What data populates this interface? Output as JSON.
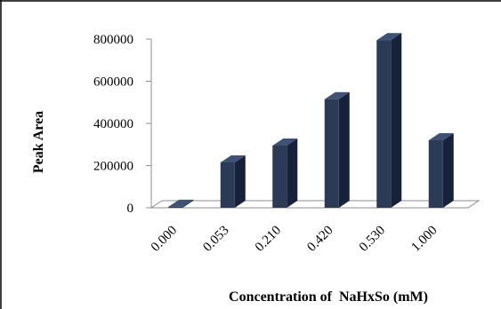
{
  "chart_data": {
    "type": "bar",
    "categories": [
      "0.000",
      "0.053",
      "0.210",
      "0.420",
      "0.530",
      "1.000"
    ],
    "values": [
      5000,
      215000,
      295000,
      515000,
      795000,
      320000
    ],
    "xlabel": "Concentration of  NaHxSo (mM)",
    "ylabel": "Peak Area",
    "ylim": [
      0,
      800000
    ],
    "yticks": [
      "0",
      "200000",
      "400000",
      "600000",
      "800000"
    ],
    "ytick_values": [
      0,
      200000,
      400000,
      600000,
      800000
    ],
    "grid": false,
    "legend": "none",
    "style": "3d-column",
    "colors": {
      "bar_front": "#2b3a55",
      "bar_side": "#16213a",
      "bar_top": "#3f5275",
      "floor": "#ffffff",
      "axis": "#8c8c8c",
      "frame": "#000000"
    }
  }
}
